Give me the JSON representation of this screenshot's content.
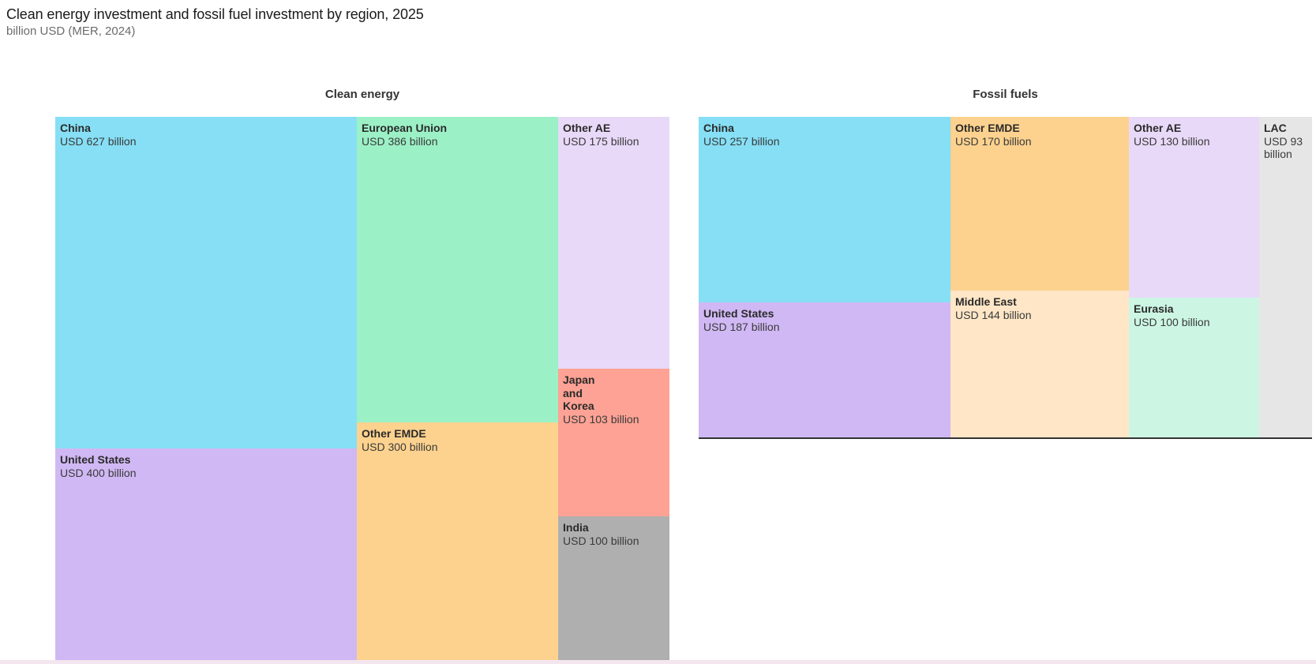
{
  "title": "Clean energy investment and fossil fuel investment by region, 2025",
  "subtitle": "billion USD (MER, 2024)",
  "colors": {
    "China": "#86dff5",
    "European Union": "#9cf0c6",
    "Other AE": "#e8d9f8",
    "United States": "#d0b8f4",
    "Other EMDE": "#fdd28e",
    "Japan and Korea": "#fda294",
    "India": "#afafaf",
    "Middle East": "#fee6c6",
    "Eurasia": "#ccf6e3",
    "LAC": "#e6e6e6"
  },
  "chart_data": [
    {
      "type": "treemap",
      "title": "Clean energy",
      "unit": "billion USD",
      "items": [
        {
          "name": "China",
          "label": "China",
          "value": 627,
          "value_label": "USD 627 billion"
        },
        {
          "name": "United States",
          "label": "United States",
          "value": 400,
          "value_label": "USD 400 billion"
        },
        {
          "name": "European Union",
          "label": "European Union",
          "value": 386,
          "value_label": "USD 386 billion"
        },
        {
          "name": "Other EMDE",
          "label": "Other EMDE",
          "value": 300,
          "value_label": "USD 300 billion"
        },
        {
          "name": "Other AE",
          "label": "Other AE",
          "value": 175,
          "value_label": "USD 175 billion"
        },
        {
          "name": "Japan and Korea",
          "label": "Japan\nand\nKorea",
          "value": 103,
          "value_label": "USD 103 billion"
        },
        {
          "name": "India",
          "label": "India",
          "value": 100,
          "value_label": "USD 100 billion"
        }
      ]
    },
    {
      "type": "treemap",
      "title": "Fossil fuels",
      "unit": "billion USD",
      "items": [
        {
          "name": "China",
          "label": "China",
          "value": 257,
          "value_label": "USD 257 billion"
        },
        {
          "name": "United States",
          "label": "United States",
          "value": 187,
          "value_label": "USD 187 billion"
        },
        {
          "name": "Other EMDE",
          "label": "Other EMDE",
          "value": 170,
          "value_label": "USD 170 billion"
        },
        {
          "name": "Middle East",
          "label": "Middle East",
          "value": 144,
          "value_label": "USD 144 billion"
        },
        {
          "name": "Other AE",
          "label": "Other AE",
          "value": 130,
          "value_label": "USD 130 billion"
        },
        {
          "name": "Eurasia",
          "label": "Eurasia",
          "value": 100,
          "value_label": "USD 100 billion"
        },
        {
          "name": "LAC",
          "label": "LAC",
          "value": 93,
          "value_label": "USD 93 billion"
        }
      ]
    }
  ]
}
